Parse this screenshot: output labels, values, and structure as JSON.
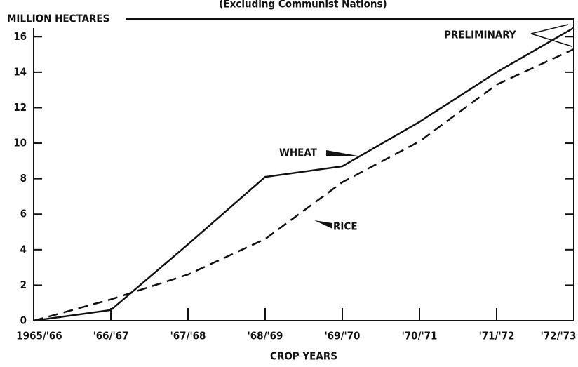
{
  "chart_data": {
    "type": "line",
    "title": "(Excluding Communist Nations)",
    "y_label": "MILLION HECTARES",
    "x_label": "CROP YEARS",
    "categories": [
      "1965/'66",
      "'66/'67",
      "'67/'68",
      "'68/'69",
      "'69/'70",
      "'70/'71",
      "'71/'72",
      "'72/'73"
    ],
    "series": [
      {
        "name": "WHEAT",
        "color": "#111111",
        "style": "solid",
        "values": [
          0,
          0.6,
          4.3,
          8.1,
          8.7,
          11.2,
          14.0,
          16.5
        ]
      },
      {
        "name": "RICE",
        "color": "#111111",
        "style": "dashed",
        "values": [
          0,
          1.2,
          2.6,
          4.6,
          7.8,
          10.1,
          13.3,
          15.3
        ]
      }
    ],
    "annotations": [
      "WHEAT",
      "RICE",
      "PRELIMINARY"
    ],
    "ylim": [
      0,
      17
    ],
    "yticks": [
      0,
      2,
      4,
      6,
      8,
      10,
      12,
      14,
      16
    ]
  }
}
